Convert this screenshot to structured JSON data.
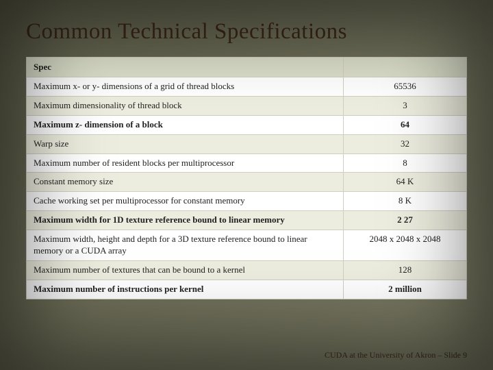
{
  "slide": {
    "title": "Common Technical Specifications",
    "footer_prefix": "CUDA at the University of Akron – Slide ",
    "footer_number": "9"
  },
  "table": {
    "header_spec": "Spec",
    "header_value": "",
    "col_widths": {
      "spec_pct": 72,
      "value_pct": 28
    },
    "font_size_pt": 13,
    "header_bg": "#dcdfca",
    "alt_row_bg": "#ededdf",
    "plain_row_bg": "#ffffff",
    "border_color": "#cfcfbf",
    "rows": [
      {
        "spec": "Maximum x- or y- dimensions of a grid of thread blocks",
        "value": "65536",
        "bold": false,
        "alt": false
      },
      {
        "spec": "Maximum dimensionality of thread block",
        "value": "3",
        "bold": false,
        "alt": true
      },
      {
        "spec": "Maximum z- dimension of a block",
        "value": "64",
        "bold": true,
        "alt": false
      },
      {
        "spec": "Warp size",
        "value": "32",
        "bold": false,
        "alt": true
      },
      {
        "spec": "Maximum number of resident blocks per multiprocessor",
        "value": "8",
        "bold": false,
        "alt": false
      },
      {
        "spec": "Constant memory size",
        "value": "64 K",
        "bold": false,
        "alt": true
      },
      {
        "spec": "Cache working set per multiprocessor for constant memory",
        "value": "8 K",
        "bold": false,
        "alt": false
      },
      {
        "spec": "Maximum width for 1D texture reference bound to linear memory",
        "value": "2 27",
        "bold": true,
        "alt": true
      },
      {
        "spec": "Maximum width, height and depth for a 3D texture reference bound to linear memory or a CUDA array",
        "value": "2048 x 2048 x 2048",
        "bold": false,
        "alt": false
      },
      {
        "spec": "Maximum number of textures that can be bound to a kernel",
        "value": "128",
        "bold": false,
        "alt": true
      },
      {
        "spec": "Maximum number of instructions per kernel",
        "value": "2 million",
        "bold": true,
        "alt": false
      }
    ]
  },
  "styling": {
    "slide_bg_gradient": [
      "#5e5e4a",
      "#6b6b56",
      "#7a7a64"
    ],
    "title_color": "#3a2618",
    "title_fontsize_pt": 33,
    "footer_color": "#3b2a1a",
    "footer_fontsize_pt": 12,
    "vignette_shadow": "inset 0 0 120px 30px rgba(0,0,0,0.55)"
  }
}
